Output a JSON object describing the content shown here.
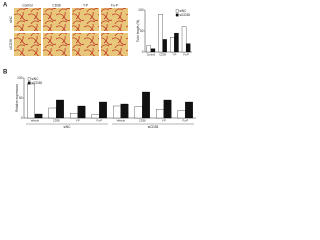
{
  "panel_labels": [
    "A",
    "B"
  ],
  "image_columns": [
    "Control",
    "CD38",
    "Y-P",
    "Fu-P"
  ],
  "image_rows": [
    "siNC",
    "siCD38"
  ],
  "chart_data": [
    {
      "type": "bar",
      "ylabel": "Tube length (%)",
      "categories": [
        "Control",
        "CD38",
        "Y-P",
        "Fu-P"
      ],
      "series": [
        {
          "name": "siNC",
          "color": "#ffffff",
          "values": [
            15,
            90,
            35,
            60
          ]
        },
        {
          "name": "siCD38",
          "color": "#111111",
          "values": [
            8,
            30,
            45,
            20
          ]
        }
      ],
      "ylim": [
        0,
        100
      ],
      "yticks": [
        0,
        50,
        100
      ],
      "legend": "upper right"
    },
    {
      "type": "bar",
      "ylabel": "Relative expression",
      "categories": [
        "Vehicle",
        "CD38",
        "Y-P",
        "Fu-P",
        "Vehicle",
        "CD38",
        "Y-P",
        "Fu-P"
      ],
      "groups": [
        "siNC",
        "siCD38"
      ],
      "series": [
        {
          "name": "siNC",
          "color": "#ffffff",
          "values": [
            85,
            25,
            12,
            8,
            30,
            28,
            22,
            18
          ]
        },
        {
          "name": "siCD38",
          "color": "#111111",
          "values": [
            10,
            45,
            30,
            40,
            35,
            65,
            45,
            40
          ]
        }
      ],
      "ylim": [
        0,
        100
      ],
      "yticks": [
        0,
        50,
        100
      ],
      "legend": "upper left"
    }
  ]
}
